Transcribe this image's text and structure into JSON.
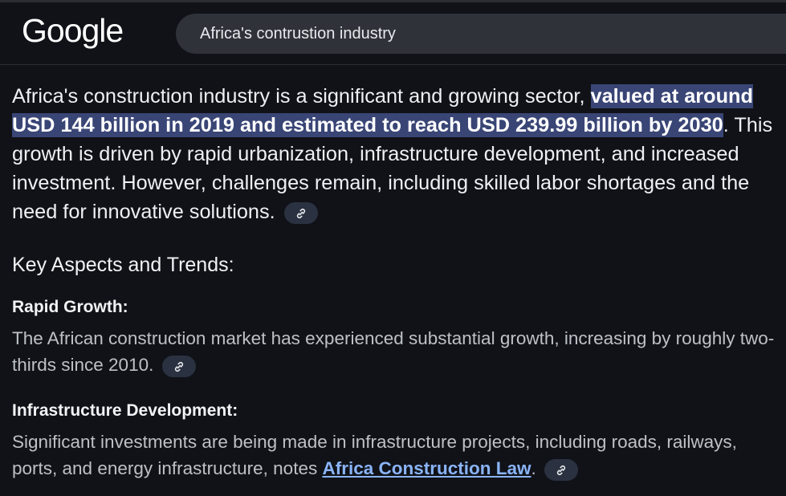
{
  "header": {
    "logo_text": "Google",
    "search_value": "Africa's contrustion industry"
  },
  "summary": {
    "part1": "Africa's construction industry is a significant and growing sector, ",
    "highlight": "valued at around USD 144 billion in 2019 and estimated to reach USD 239.99 billion by 2030",
    "part2": ". This growth is driven by rapid urbanization, infrastructure development, and increased investment. However, challenges remain, including skilled labor shortages and the need for innovative solutions."
  },
  "section": {
    "heading": "Key Aspects and Trends:",
    "items": [
      {
        "title": "Rapid Growth:",
        "text": "The African construction market has experienced substantial growth, increasing by roughly two-thirds since 2010."
      },
      {
        "title": "Infrastructure Development:",
        "text_before_link": "Significant investments are being made in infrastructure projects, including roads, railways, ports, and energy infrastructure, notes ",
        "link_text": "Africa Construction Law",
        "text_after_link": "."
      }
    ]
  },
  "icons": {
    "source_chip": "link-icon"
  },
  "colors": {
    "background": "#101218",
    "highlight": "#394575",
    "link": "#8ab4f8",
    "chip": "#2a3140"
  }
}
